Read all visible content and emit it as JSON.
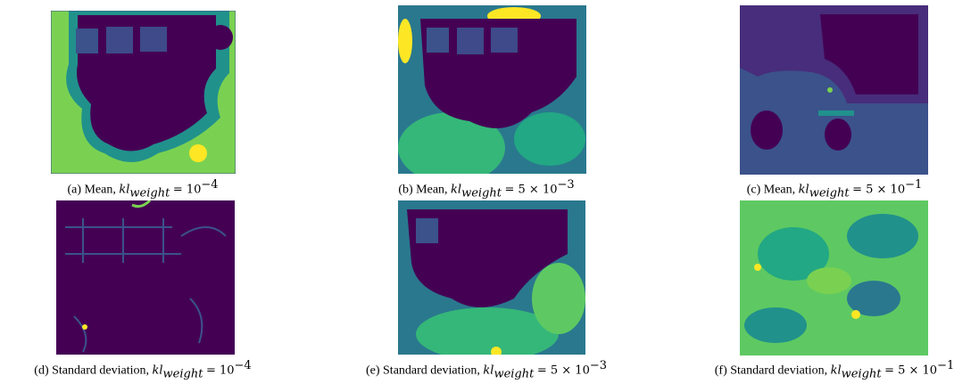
{
  "panels": [
    {
      "label": "(a) Mean,",
      "var": "kl",
      "sub": "weight",
      "rhs": "= 10",
      "exp": "−4"
    },
    {
      "label": "(b) Mean,",
      "var": "kl",
      "sub": "weight",
      "rhs": "= 5 × 10",
      "exp": "−3"
    },
    {
      "label": "(c) Mean,",
      "var": "kl",
      "sub": "weight",
      "rhs": "= 5 × 10",
      "exp": "−1"
    },
    {
      "label": "(d) Standard deviation,",
      "var": "kl",
      "sub": "weight",
      "rhs": "= 10",
      "exp": "−4"
    },
    {
      "label": "(e) Standard deviation,",
      "var": "kl",
      "sub": "weight",
      "rhs": "= 5 × 10",
      "exp": "−3"
    },
    {
      "label": "(f) Standard deviation,",
      "var": "kl",
      "sub": "weight",
      "rhs": "= 5 × 10",
      "exp": "−1"
    }
  ]
}
